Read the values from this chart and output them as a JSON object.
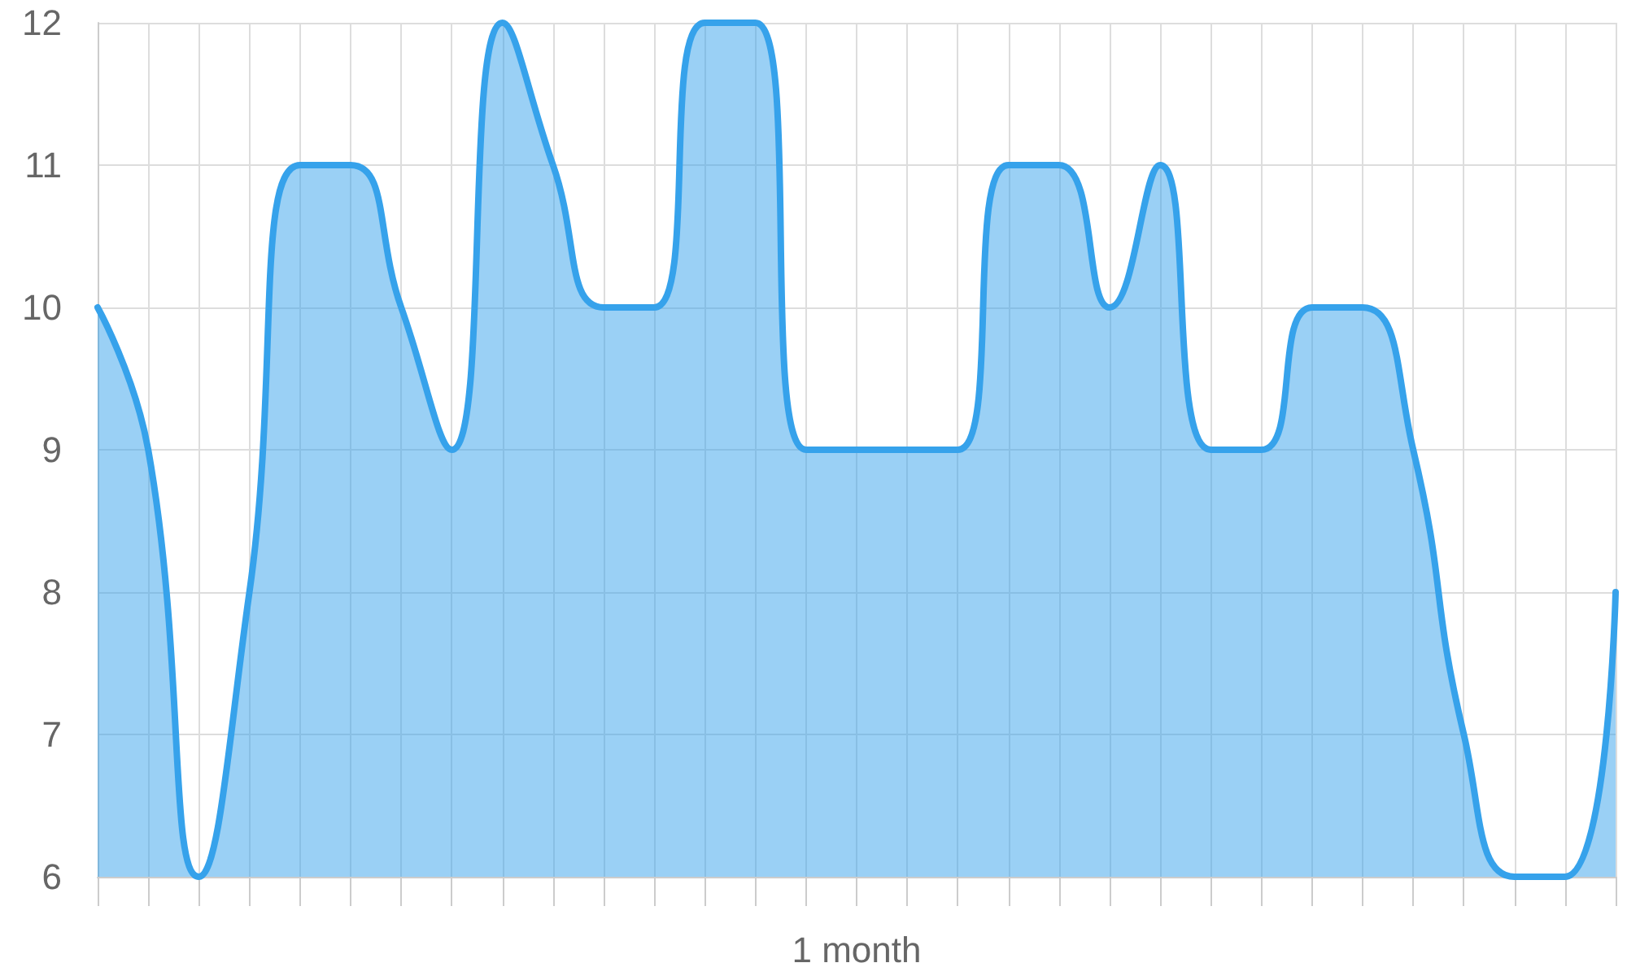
{
  "chart_data": {
    "type": "area",
    "xlabel": "1 month",
    "categories": [
      null,
      null,
      null,
      null,
      null,
      null,
      null,
      null,
      null,
      null,
      null,
      null,
      null,
      null,
      null,
      null,
      null,
      null,
      null,
      null,
      null,
      null,
      null,
      null,
      null,
      null,
      null,
      null,
      null,
      null,
      null
    ],
    "series": [
      {
        "color": "#36a2eb",
        "values": [
          10,
          9,
          6,
          8,
          11,
          11,
          10,
          9,
          12,
          11,
          10,
          10,
          12,
          12,
          9,
          9,
          9,
          9,
          11,
          11,
          10,
          11,
          9,
          9,
          10,
          10,
          9,
          7,
          6,
          6,
          8
        ]
      }
    ],
    "ylim": [
      6,
      12
    ],
    "yticks": [
      6,
      7,
      8,
      9,
      10,
      11,
      12
    ],
    "grid": true,
    "marker": "none",
    "line_style": "solid"
  }
}
